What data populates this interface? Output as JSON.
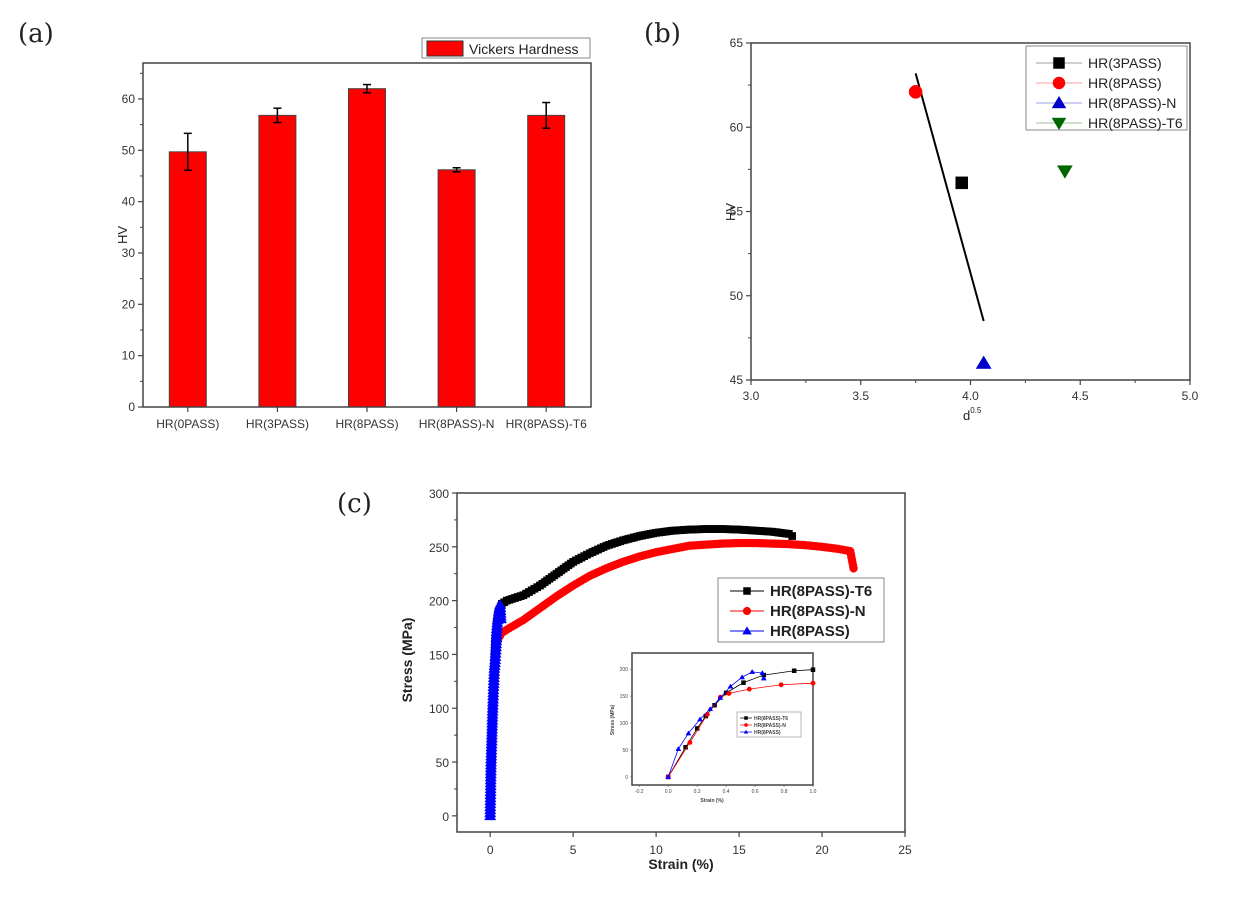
{
  "panels": {
    "a": "(a)",
    "b": "(b)",
    "c": "(c)"
  },
  "chart_data": [
    {
      "id": "a",
      "type": "bar",
      "title": "",
      "xlabel": "",
      "ylabel": "HV",
      "ylim": [
        0,
        67
      ],
      "yticks": [
        0,
        10,
        20,
        30,
        40,
        50,
        60
      ],
      "yticks_labels": [
        "0",
        "10",
        "20",
        "30",
        "40",
        "50",
        "60"
      ],
      "categories": [
        "HR(0PASS)",
        "HR(3PASS)",
        "HR(8PASS)",
        "HR(8PASS)-N",
        "HR(8PASS)-T6"
      ],
      "series": [
        {
          "name": "Vickers Hardness",
          "color": "#ff0000",
          "values": [
            49.7,
            56.8,
            62.0,
            46.2,
            56.8
          ],
          "errors": [
            3.6,
            1.4,
            0.8,
            0.4,
            2.5
          ]
        }
      ],
      "legend": {
        "position": "top-right",
        "entries": [
          "Vickers Hardness"
        ]
      },
      "grid": false
    },
    {
      "id": "b",
      "type": "scatter",
      "title": "",
      "xlabel": "d",
      "xlabel_superscript": "0.5",
      "ylabel": "HV",
      "xlim": [
        3.0,
        5.0
      ],
      "ylim": [
        45,
        65
      ],
      "xticks": [
        "3.0",
        "3.5",
        "4.0",
        "4.5",
        "5.0"
      ],
      "xtick_values": [
        3.0,
        3.5,
        4.0,
        4.5,
        5.0
      ],
      "yticks": [
        "45",
        "50",
        "55",
        "60",
        "65"
      ],
      "ytick_values": [
        45,
        50,
        55,
        60,
        65
      ],
      "series": [
        {
          "name": "HR(3PASS)",
          "marker": "square",
          "color": "#000000",
          "x": [
            3.96
          ],
          "y": [
            56.7
          ]
        },
        {
          "name": "HR(8PASS)",
          "marker": "circle",
          "color": "#ff0000",
          "x": [
            3.75
          ],
          "y": [
            62.1
          ]
        },
        {
          "name": "HR(8PASS)-N",
          "marker": "triangle-up",
          "color": "#0000cc",
          "x": [
            4.06
          ],
          "y": [
            46.0
          ]
        },
        {
          "name": "HR(8PASS)-T6",
          "marker": "triangle-down",
          "color": "#006600",
          "x": [
            4.43
          ],
          "y": [
            57.4
          ]
        }
      ],
      "fit_line": {
        "x": [
          3.75,
          4.06
        ],
        "y": [
          63.2,
          48.5
        ],
        "color": "#000000"
      },
      "legend": {
        "position": "top-right"
      },
      "grid": false
    },
    {
      "id": "c",
      "type": "line",
      "title": "",
      "xlabel": "Strain (%)",
      "ylabel": "Stress (MPa)",
      "xlim": [
        -2,
        25
      ],
      "ylim": [
        -15,
        300
      ],
      "xticks": [
        "0",
        "5",
        "10",
        "15",
        "20",
        "25"
      ],
      "xtick_values": [
        0,
        5,
        10,
        15,
        20,
        25
      ],
      "yticks": [
        "0",
        "50",
        "100",
        "150",
        "200",
        "250",
        "300"
      ],
      "ytick_values": [
        0,
        50,
        100,
        150,
        200,
        250,
        300
      ],
      "series": [
        {
          "name": "HR(8PASS)-T6",
          "marker": "square",
          "color": "#000000",
          "x": [
            0,
            0.1,
            0.15,
            0.2,
            0.25,
            0.3,
            0.4,
            0.5,
            0.7,
            1,
            2,
            3,
            4,
            5,
            6,
            7,
            8,
            9,
            10,
            11,
            12,
            13,
            14,
            15,
            16,
            17,
            18,
            18.2
          ],
          "y": [
            0,
            51,
            85,
            124,
            145,
            163,
            180,
            190,
            197,
            200,
            205,
            214,
            225,
            236,
            244,
            251,
            256,
            260,
            263,
            265,
            266,
            266.5,
            266.5,
            266,
            265,
            264,
            262,
            260
          ]
        },
        {
          "name": "HR(8PASS)-N",
          "marker": "circle",
          "color": "#ff0000",
          "x": [
            0,
            0.1,
            0.2,
            0.3,
            0.4,
            0.5,
            0.7,
            1,
            2,
            3,
            4,
            5,
            6,
            7,
            8,
            9,
            10,
            11,
            12,
            13,
            14,
            15,
            16,
            17,
            18,
            19,
            20,
            21,
            21.7,
            21.9
          ],
          "y": [
            0,
            58,
            107,
            141,
            160,
            165,
            170,
            173,
            182,
            193,
            204,
            214,
            223,
            230,
            236,
            241,
            245,
            248,
            251,
            252,
            253,
            253.5,
            253.5,
            253,
            252.5,
            251.5,
            250,
            248,
            246,
            230
          ]
        },
        {
          "name": "HR(8PASS)",
          "marker": "triangle-up",
          "color": "#0000ff",
          "x": [
            0,
            0.05,
            0.1,
            0.15,
            0.2,
            0.25,
            0.3,
            0.35,
            0.4,
            0.45,
            0.5,
            0.55,
            0.6,
            0.65
          ],
          "y": [
            0,
            50,
            75,
            100,
            120,
            137,
            145,
            157,
            174,
            182,
            187,
            193,
            196,
            183
          ]
        }
      ],
      "legend": {
        "position": "center-right"
      },
      "inset": {
        "xlabel": "Strain (%)",
        "ylabel": "Stress (MPa)",
        "xlim": [
          -0.25,
          1.0
        ],
        "ylim": [
          -15,
          230
        ],
        "xticks": [
          "-0.2",
          "0.0",
          "0.2",
          "0.4",
          "0.6",
          "0.8",
          "1.0"
        ],
        "xtick_values": [
          -0.2,
          0.0,
          0.2,
          0.4,
          0.6,
          0.8,
          1.0
        ],
        "yticks": [
          "0",
          "50",
          "100",
          "150",
          "200"
        ],
        "ytick_values": [
          0,
          50,
          100,
          150,
          200
        ],
        "series": [
          {
            "name": "HR(8PASS)-T6",
            "color": "#000000",
            "marker": "square",
            "x": [
              0.0,
              0.12,
              0.2,
              0.26,
              0.32,
              0.4,
              0.52,
              0.66,
              0.87,
              1.0
            ],
            "y": [
              0,
              55,
              90,
              113,
              133,
              156,
              175,
              189,
              197,
              199
            ]
          },
          {
            "name": "HR(8PASS)-N",
            "color": "#ff0000",
            "marker": "circle",
            "x": [
              0.0,
              0.15,
              0.27,
              0.36,
              0.42,
              0.56,
              0.78,
              1.0
            ],
            "y": [
              0,
              64,
              116,
              148,
              155,
              163,
              171,
              174
            ]
          },
          {
            "name": "HR(8PASS)",
            "color": "#0000ff",
            "marker": "triangle-up",
            "x": [
              0.0,
              0.07,
              0.14,
              0.22,
              0.29,
              0.36,
              0.43,
              0.51,
              0.58,
              0.65,
              0.66
            ],
            "y": [
              0,
              52,
              81,
              107,
              126,
              147,
              168,
              185,
              195,
              193,
              183
            ]
          }
        ],
        "legend": {
          "position": "center-right"
        }
      },
      "grid": false
    }
  ]
}
